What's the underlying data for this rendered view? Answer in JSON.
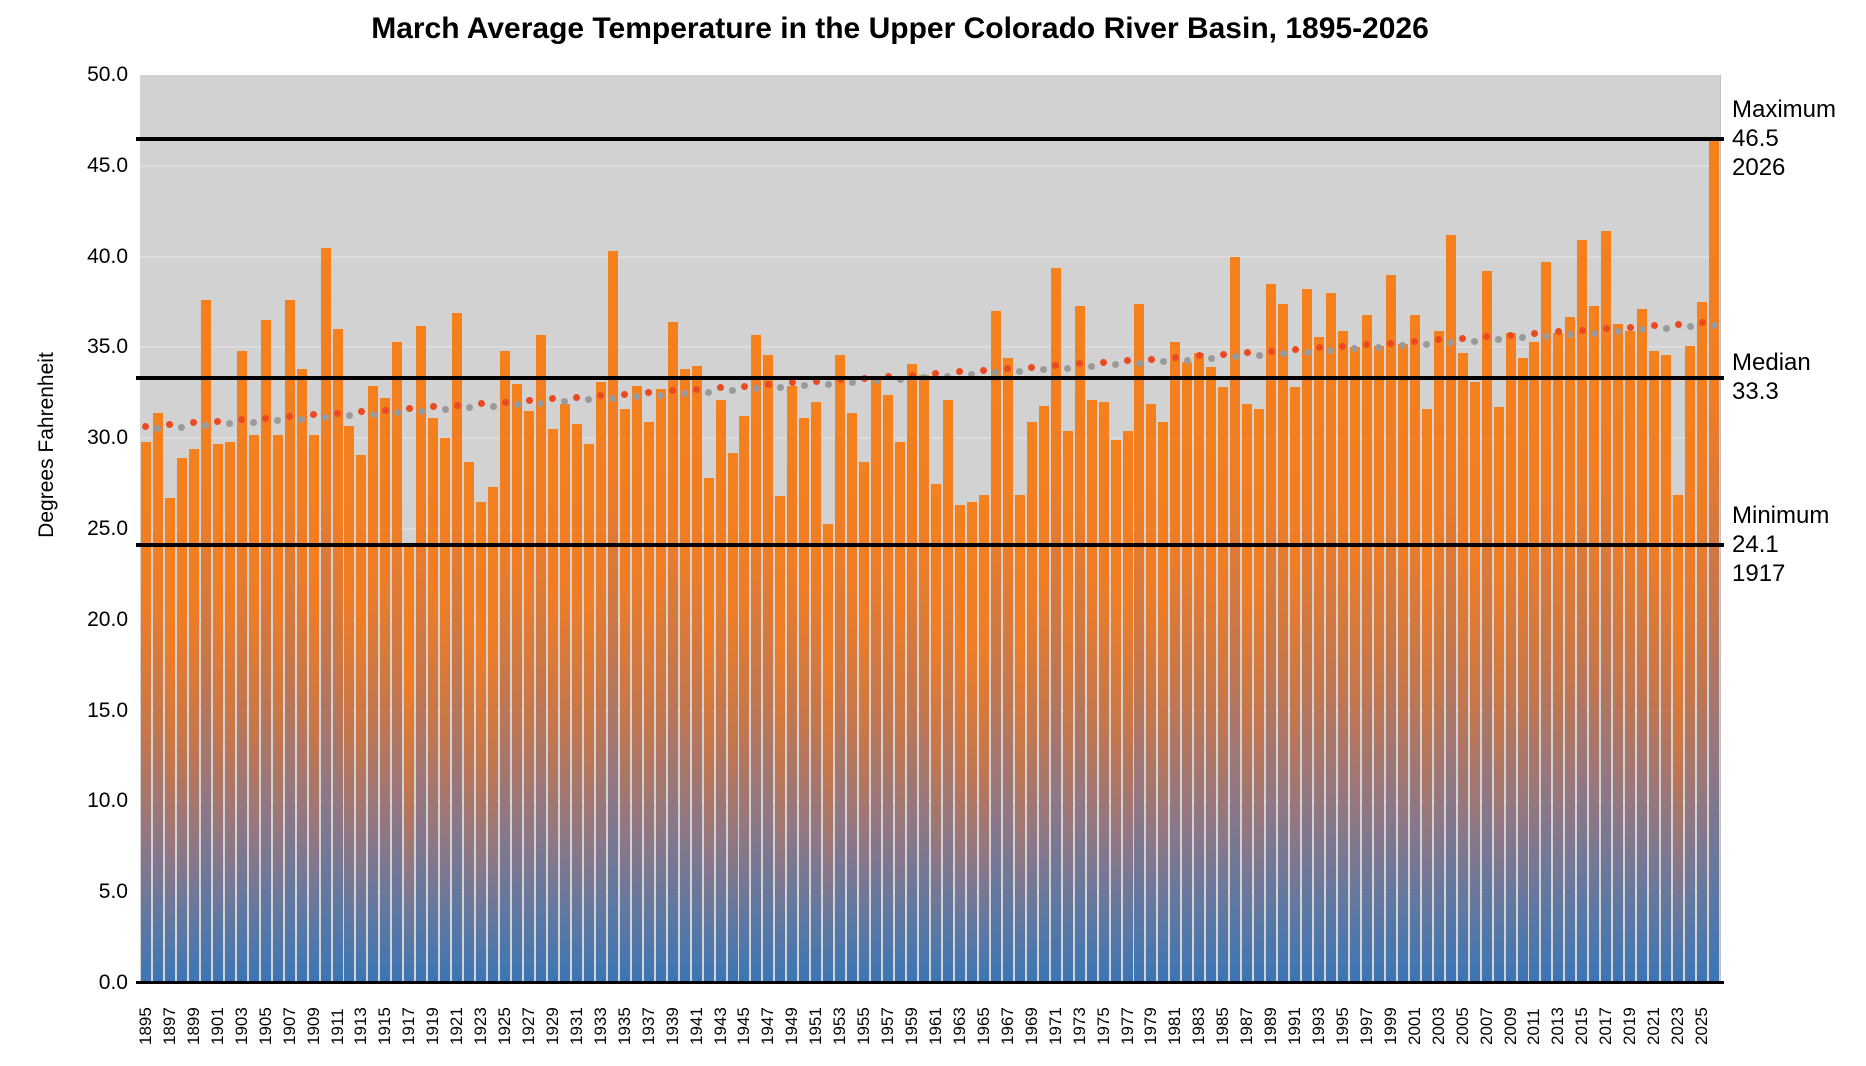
{
  "title": "March Average Temperature in the Upper Colorado River Basin, 1895-2026",
  "y_axis": {
    "label": "Degrees Fahrenheit",
    "tick_values": [
      50,
      45,
      40,
      35,
      30,
      25,
      20,
      15,
      10,
      5,
      0
    ],
    "tick_labels": [
      "50.0",
      "45.0",
      "40.0",
      "35.0",
      "30.0",
      "25.0",
      "20.0",
      "15.0",
      "10.0",
      "5.0",
      "0.0"
    ],
    "min": 0,
    "max": 50
  },
  "x_axis": {
    "start_year": 1895,
    "end_year": 2026,
    "label_step": 2,
    "first_label_year": 1895
  },
  "annotations": {
    "maximum": {
      "label": "Maximum",
      "value": "46.5",
      "year": "2026"
    },
    "median": {
      "label": "Median",
      "value": "33.3",
      "year": ""
    },
    "minimum": {
      "label": "Minimum",
      "value": "24.1",
      "year": "1917"
    }
  },
  "reference_lines": {
    "maximum": 46.5,
    "median": 33.3,
    "minimum": 24.1
  },
  "colors": {
    "plot_background": "#d2d2d2",
    "gridline": "#dcdcdc",
    "bar_top_orange": "#f5801c",
    "bar_bottom_blue": "#3b76b5",
    "reference_line": "#000000",
    "trend_dot_red": "#ea4a21",
    "trend_dot_gray": "#9a9a9a"
  },
  "chart_data": {
    "type": "bar",
    "title": "March Average Temperature in the Upper Colorado River Basin, 1895-2026",
    "xlabel": "",
    "ylabel": "Degrees Fahrenheit",
    "ylim": [
      0,
      50
    ],
    "grid": true,
    "legend_position": "none",
    "start_year": 1895,
    "years_span": "1895-2026",
    "values": [
      29.8,
      31.4,
      26.7,
      28.9,
      29.4,
      37.6,
      29.7,
      29.8,
      34.8,
      30.2,
      36.5,
      30.2,
      37.6,
      33.8,
      30.2,
      40.5,
      36.0,
      30.7,
      29.1,
      32.9,
      32.2,
      35.3,
      24.1,
      36.2,
      31.1,
      30.0,
      36.9,
      28.7,
      26.5,
      27.3,
      34.8,
      33.0,
      31.5,
      35.7,
      30.5,
      31.9,
      30.8,
      29.7,
      33.1,
      40.3,
      31.6,
      32.9,
      30.9,
      32.7,
      36.4,
      33.8,
      34.0,
      27.8,
      32.1,
      29.2,
      31.2,
      35.7,
      34.6,
      26.8,
      32.9,
      31.1,
      32.0,
      25.3,
      34.6,
      31.4,
      28.7,
      33.3,
      32.4,
      29.8,
      34.1,
      33.5,
      27.5,
      32.1,
      26.3,
      26.5,
      26.9,
      37.0,
      34.4,
      26.9,
      30.9,
      31.8,
      39.4,
      30.4,
      37.3,
      32.1,
      32.0,
      29.9,
      30.4,
      37.4,
      31.9,
      30.9,
      35.3,
      34.2,
      34.7,
      33.9,
      32.8,
      40.0,
      31.9,
      31.6,
      38.5,
      37.4,
      32.8,
      38.2,
      35.6,
      38.0,
      35.9,
      35.0,
      36.8,
      35.1,
      39.0,
      35.2,
      36.8,
      31.6,
      35.9,
      41.2,
      34.7,
      33.1,
      39.2,
      31.7,
      35.8,
      34.4,
      35.3,
      39.7,
      35.8,
      36.7,
      40.9,
      37.3,
      41.4,
      36.3,
      35.9,
      37.1,
      34.8,
      34.6,
      26.9,
      35.1,
      37.5,
      46.5
    ],
    "trend": {
      "start_value": 30.6,
      "end_value": 36.35,
      "style": "dotted",
      "note": "alternating red (odd years) and gray (even years) dots"
    },
    "statistics": {
      "maximum": 46.5,
      "maximum_year": 2026,
      "median": 33.3,
      "minimum": 24.1,
      "minimum_year": 1917
    }
  }
}
